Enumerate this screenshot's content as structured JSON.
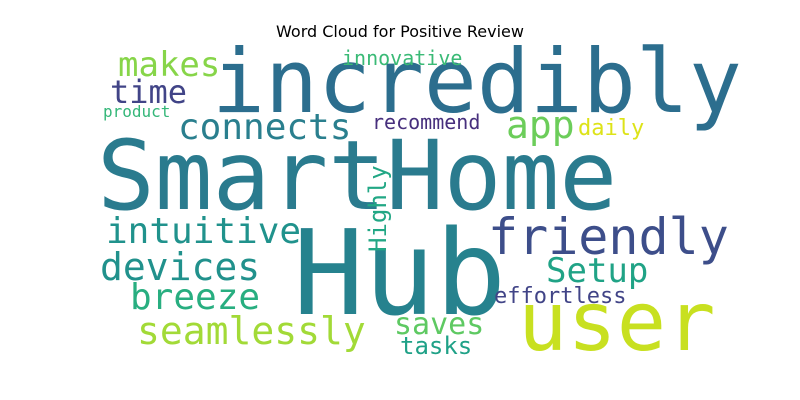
{
  "title": "Word Cloud for Positive Review",
  "words": [
    {
      "text": "SmartHome",
      "color": "#2a7b8e"
    },
    {
      "text": "Hub",
      "color": "#26828e"
    },
    {
      "text": "incredibly",
      "color": "#2c6e8e"
    },
    {
      "text": "user",
      "color": "#c8e020"
    },
    {
      "text": "friendly",
      "color": "#3d4e8a"
    },
    {
      "text": "connects",
      "color": "#2a7f8e"
    },
    {
      "text": "app",
      "color": "#6ccd5a"
    },
    {
      "text": "makes",
      "color": "#87d549"
    },
    {
      "text": "time",
      "color": "#414487"
    },
    {
      "text": "intuitive",
      "color": "#20928c"
    },
    {
      "text": "devices",
      "color": "#21918c"
    },
    {
      "text": "Setup",
      "color": "#20a386"
    },
    {
      "text": "breeze",
      "color": "#28ae80"
    },
    {
      "text": "seamlessly",
      "color": "#a2da37"
    },
    {
      "text": "saves",
      "color": "#5ec962"
    },
    {
      "text": "recommend",
      "color": "#472f7d"
    },
    {
      "text": "daily",
      "color": "#dde318"
    },
    {
      "text": "Highly",
      "color": "#22a785"
    },
    {
      "text": "innovative",
      "color": "#3aba76"
    },
    {
      "text": "product",
      "color": "#35b779"
    },
    {
      "text": "effortless",
      "color": "#414487"
    },
    {
      "text": "tasks",
      "color": "#1fa187"
    }
  ]
}
